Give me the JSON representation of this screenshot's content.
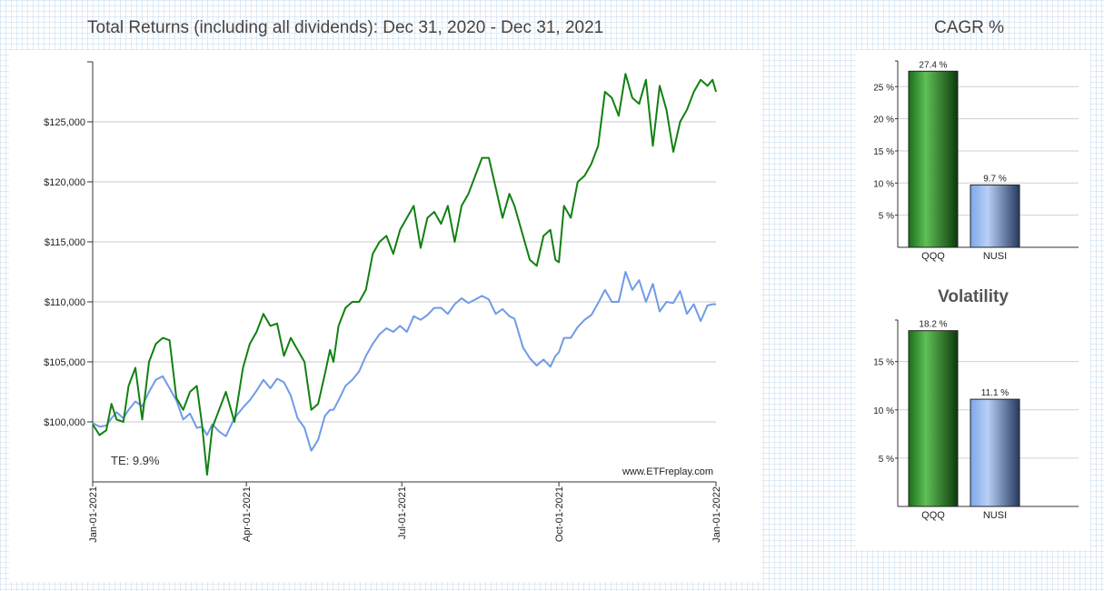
{
  "page": {
    "title": "Total Returns (including all dividends): Dec 31, 2020 - Dec 31, 2021",
    "cagr_title": "CAGR %",
    "volatility_title": "Volatility",
    "te_label": "TE:  9.9%",
    "watermark": "www.ETFreplay.com"
  },
  "colors": {
    "qqq": "#128012",
    "nusi": "#6f9be6"
  },
  "chart_data": [
    {
      "type": "line",
      "title": "Total Returns (including all dividends): Dec 31, 2020 - Dec 31, 2021",
      "xlim": [
        0,
        365
      ],
      "ylim": [
        95000,
        130000
      ],
      "yticks": [
        100000,
        105000,
        110000,
        115000,
        120000,
        125000
      ],
      "ytick_labels": [
        "$100,000",
        "$105,000",
        "$110,000",
        "$115,000",
        "$120,000",
        "$125,000"
      ],
      "xticks": [
        0,
        90,
        181,
        273,
        365
      ],
      "xtick_labels": [
        "Jan-01-2021",
        "Apr-01-2021",
        "Jul-01-2021",
        "Oct-01-2021",
        "Jan-01-2022"
      ],
      "series": [
        {
          "name": "QQQ",
          "x": [
            0,
            4,
            8,
            11,
            14,
            18,
            21,
            25,
            29,
            33,
            37,
            41,
            45,
            49,
            53,
            57,
            61,
            64,
            67,
            70,
            74,
            78,
            83,
            88,
            92,
            96,
            100,
            104,
            108,
            112,
            116,
            120,
            124,
            128,
            132,
            136,
            139,
            141,
            144,
            148,
            152,
            156,
            160,
            164,
            168,
            172,
            176,
            180,
            184,
            188,
            192,
            196,
            200,
            204,
            208,
            212,
            216,
            220,
            224,
            228,
            232,
            236,
            240,
            244,
            247,
            252,
            256,
            260,
            264,
            268,
            271,
            273,
            276,
            280,
            284,
            288,
            292,
            296,
            300,
            304,
            308,
            312,
            316,
            320,
            324,
            328,
            332,
            336,
            340,
            344,
            348,
            352,
            356,
            360,
            363,
            365
          ],
          "y": [
            99800,
            98900,
            99300,
            101500,
            100200,
            100000,
            103000,
            104500,
            100200,
            105000,
            106500,
            107000,
            106800,
            102000,
            101000,
            102500,
            103000,
            99800,
            95600,
            99500,
            101000,
            102500,
            100000,
            104500,
            106500,
            107500,
            109000,
            108000,
            108200,
            105500,
            107000,
            106000,
            105000,
            101000,
            101500,
            104000,
            106000,
            105000,
            108000,
            109500,
            110000,
            110000,
            111000,
            114000,
            115000,
            115500,
            114000,
            116000,
            117000,
            118000,
            114500,
            117000,
            117500,
            116500,
            118000,
            115000,
            118000,
            119000,
            120500,
            122000,
            122000,
            119500,
            117000,
            119000,
            118000,
            115500,
            113500,
            113000,
            115500,
            116000,
            113500,
            113300,
            118000,
            117000,
            120000,
            120500,
            121500,
            123000,
            127500,
            127000,
            125500,
            129000,
            127000,
            126500,
            128500,
            123000,
            128000,
            126000,
            122500,
            125000,
            126000,
            127500,
            128500,
            128000,
            128500,
            127500
          ]
        },
        {
          "name": "NUSI",
          "x": [
            0,
            4,
            8,
            11,
            14,
            18,
            21,
            25,
            29,
            33,
            37,
            41,
            45,
            49,
            53,
            57,
            61,
            64,
            67,
            70,
            74,
            78,
            83,
            88,
            92,
            96,
            100,
            104,
            108,
            112,
            116,
            120,
            124,
            128,
            132,
            136,
            139,
            141,
            144,
            148,
            152,
            156,
            160,
            164,
            168,
            172,
            176,
            180,
            184,
            188,
            192,
            196,
            200,
            204,
            208,
            212,
            216,
            220,
            224,
            228,
            232,
            236,
            240,
            244,
            247,
            252,
            256,
            260,
            264,
            268,
            271,
            273,
            276,
            280,
            284,
            288,
            292,
            296,
            300,
            304,
            308,
            312,
            316,
            320,
            324,
            328,
            332,
            336,
            340,
            344,
            348,
            352,
            356,
            360,
            363,
            365
          ],
          "y": [
            99900,
            99600,
            99700,
            100300,
            100800,
            100300,
            101000,
            101700,
            101300,
            102500,
            103500,
            103800,
            102800,
            101800,
            100200,
            100700,
            99500,
            99600,
            98900,
            99800,
            99200,
            98800,
            100300,
            101200,
            101800,
            102600,
            103500,
            102800,
            103600,
            103300,
            102200,
            100300,
            99500,
            97600,
            98500,
            100500,
            101000,
            101000,
            101800,
            103000,
            103500,
            104200,
            105500,
            106500,
            107300,
            107800,
            107500,
            108000,
            107500,
            108800,
            108500,
            108900,
            109500,
            109500,
            109000,
            109800,
            110300,
            109900,
            110200,
            110500,
            110200,
            109000,
            109400,
            108800,
            108600,
            106200,
            105300,
            104700,
            105200,
            104600,
            105500,
            105800,
            107000,
            107000,
            107900,
            108500,
            108900,
            109900,
            111000,
            110000,
            110000,
            112500,
            111000,
            111800,
            110000,
            111500,
            109200,
            110000,
            109900,
            110900,
            109000,
            109800,
            108400,
            109700,
            109800,
            109800
          ]
        }
      ]
    },
    {
      "type": "bar",
      "title": "CAGR %",
      "categories": [
        "QQQ",
        "NUSI"
      ],
      "values": [
        27.4,
        9.7
      ],
      "value_labels": [
        "27.4 %",
        "9.7 %"
      ],
      "ylim": [
        0,
        29
      ],
      "yticks": [
        5,
        10,
        15,
        20,
        25
      ],
      "ytick_labels": [
        "5 %",
        "10 %",
        "15 %",
        "20 %",
        "25 %"
      ]
    },
    {
      "type": "bar",
      "title": "Volatility",
      "categories": [
        "QQQ",
        "NUSI"
      ],
      "values": [
        18.2,
        11.1
      ],
      "value_labels": [
        "18.2 %",
        "11.1 %"
      ],
      "ylim": [
        0,
        19.3
      ],
      "yticks": [
        5,
        10,
        15
      ],
      "ytick_labels": [
        "5 %",
        "10 %",
        "15 %"
      ]
    }
  ]
}
